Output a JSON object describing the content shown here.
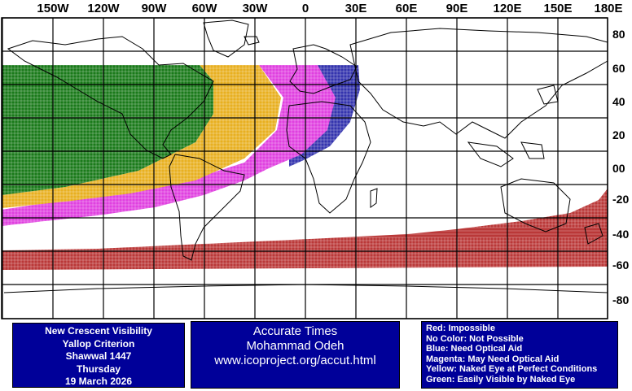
{
  "header": {
    "longitude_labels": [
      "150W",
      "120W",
      "90W",
      "60W",
      "30W",
      "0",
      "30E",
      "60E",
      "90E",
      "120E",
      "150E",
      "180E"
    ],
    "latitude_labels": [
      "80",
      "60",
      "40",
      "20",
      "00",
      "-20",
      "-40",
      "-60",
      "-80"
    ]
  },
  "map": {
    "colors": {
      "impossible": "#b22222",
      "optical_aid": "#1010a0",
      "may_need_optical_aid": "#e040e0",
      "perfect_conditions": "#e8b020",
      "naked_eye": "#1a7a1a",
      "grid": "#000000",
      "coast": "#000000"
    }
  },
  "info_left": {
    "lines": [
      "New Crescent Visibility",
      "Yallop Criterion",
      "Shawwal 1447",
      "Thursday",
      "19 March 2026"
    ]
  },
  "info_mid": {
    "lines": [
      "Accurate Times",
      "Mohammad Odeh",
      "www.icoproject.org/accut.html"
    ]
  },
  "legend": {
    "lines": [
      "Red: Impossible",
      "No Color: Not Possible",
      "Blue: Need Optical Aid",
      "Magenta: May Need Optical Aid",
      "Yellow: Naked Eye at Perfect Conditions",
      "Green: Easily Visible by Naked Eye"
    ]
  }
}
